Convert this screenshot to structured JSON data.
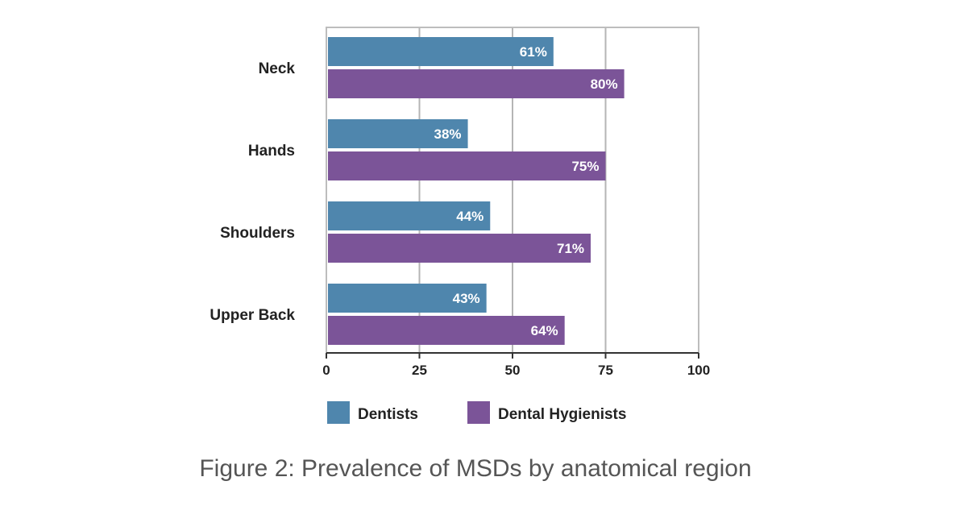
{
  "chart_data": {
    "type": "bar",
    "orientation": "horizontal",
    "categories": [
      "Neck",
      "Hands",
      "Shoulders",
      "Upper Back"
    ],
    "series": [
      {
        "name": "Dentists",
        "values": [
          61,
          38,
          44,
          43
        ],
        "labels": [
          "61%",
          "38%",
          "44%",
          "43%"
        ],
        "color": "#4f86ad"
      },
      {
        "name": "Dental Hygienists",
        "values": [
          80,
          75,
          71,
          64
        ],
        "labels": [
          "80%",
          "75%",
          "71%",
          "64%"
        ],
        "color": "#7b5498"
      }
    ],
    "xlim": [
      0,
      100
    ],
    "xticks": [
      0,
      25,
      50,
      75,
      100
    ],
    "xtick_labels": [
      "0",
      "25",
      "50",
      "75",
      "100"
    ],
    "grid": true,
    "legend_position": "bottom",
    "caption": "Figure 2: Prevalence of MSDs by anatomical region"
  },
  "colors": {
    "grid": "#b5b5b5",
    "frame": "#bdbdbd",
    "axis": "#333333"
  }
}
